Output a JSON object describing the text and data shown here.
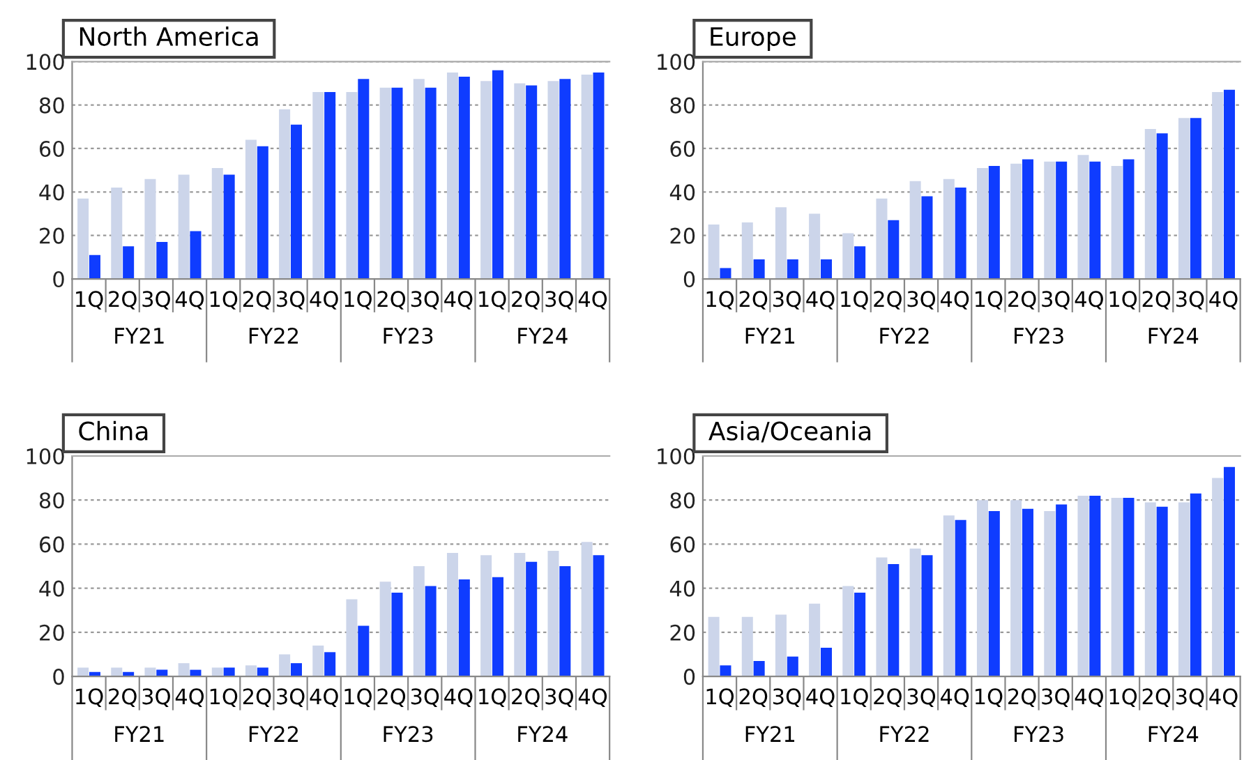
{
  "chart_data": [
    {
      "type": "bar",
      "title": "North America",
      "categories": [
        "1Q",
        "2Q",
        "3Q",
        "4Q",
        "1Q",
        "2Q",
        "3Q",
        "4Q",
        "1Q",
        "2Q",
        "3Q",
        "4Q",
        "1Q",
        "2Q",
        "3Q",
        "4Q"
      ],
      "annotations": [
        "FY21",
        "FY22",
        "FY23",
        "FY24"
      ],
      "ylim": [
        0,
        100
      ],
      "yticks": [
        0,
        20,
        40,
        60,
        80,
        100
      ],
      "grid": "y",
      "legend": false,
      "series": [
        {
          "color": "#ccd5ea",
          "values": [
            37,
            42,
            46,
            48,
            51,
            64,
            78,
            86,
            86,
            88,
            92,
            95,
            91,
            90,
            91,
            94
          ]
        },
        {
          "color": "#0f3cff",
          "values": [
            11,
            15,
            17,
            22,
            48,
            61,
            71,
            86,
            92,
            88,
            88,
            93,
            96,
            89,
            92,
            95
          ]
        }
      ]
    },
    {
      "type": "bar",
      "title": "Europe",
      "categories": [
        "1Q",
        "2Q",
        "3Q",
        "4Q",
        "1Q",
        "2Q",
        "3Q",
        "4Q",
        "1Q",
        "2Q",
        "3Q",
        "4Q",
        "1Q",
        "2Q",
        "3Q",
        "4Q"
      ],
      "annotations": [
        "FY21",
        "FY22",
        "FY23",
        "FY24"
      ],
      "ylim": [
        0,
        100
      ],
      "yticks": [
        0,
        20,
        40,
        60,
        80,
        100
      ],
      "grid": "y",
      "legend": false,
      "series": [
        {
          "color": "#ccd5ea",
          "values": [
            25,
            26,
            33,
            30,
            21,
            37,
            45,
            46,
            51,
            53,
            54,
            57,
            52,
            69,
            74,
            86
          ]
        },
        {
          "color": "#0f3cff",
          "values": [
            5,
            9,
            9,
            9,
            15,
            27,
            38,
            42,
            52,
            55,
            54,
            54,
            55,
            67,
            74,
            87
          ]
        }
      ]
    },
    {
      "type": "bar",
      "title": "China",
      "categories": [
        "1Q",
        "2Q",
        "3Q",
        "4Q",
        "1Q",
        "2Q",
        "3Q",
        "4Q",
        "1Q",
        "2Q",
        "3Q",
        "4Q",
        "1Q",
        "2Q",
        "3Q",
        "4Q"
      ],
      "annotations": [
        "FY21",
        "FY22",
        "FY23",
        "FY24"
      ],
      "ylim": [
        0,
        100
      ],
      "yticks": [
        0,
        20,
        40,
        60,
        80,
        100
      ],
      "grid": "y",
      "legend": false,
      "series": [
        {
          "color": "#ccd5ea",
          "values": [
            4,
            4,
            4,
            6,
            4,
            5,
            10,
            14,
            35,
            43,
            50,
            56,
            55,
            56,
            57,
            61
          ]
        },
        {
          "color": "#0f3cff",
          "values": [
            2,
            2,
            3,
            3,
            4,
            4,
            6,
            11,
            23,
            38,
            41,
            44,
            45,
            52,
            50,
            55
          ]
        }
      ]
    },
    {
      "type": "bar",
      "title": "Asia/Oceania",
      "categories": [
        "1Q",
        "2Q",
        "3Q",
        "4Q",
        "1Q",
        "2Q",
        "3Q",
        "4Q",
        "1Q",
        "2Q",
        "3Q",
        "4Q",
        "1Q",
        "2Q",
        "3Q",
        "4Q"
      ],
      "annotations": [
        "FY21",
        "FY22",
        "FY23",
        "FY24"
      ],
      "ylim": [
        0,
        100
      ],
      "yticks": [
        0,
        20,
        40,
        60,
        80,
        100
      ],
      "grid": "y",
      "legend": false,
      "series": [
        {
          "color": "#ccd5ea",
          "values": [
            27,
            27,
            28,
            33,
            41,
            54,
            58,
            73,
            80,
            80,
            75,
            82,
            81,
            79,
            79,
            90
          ]
        },
        {
          "color": "#0f3cff",
          "values": [
            5,
            7,
            9,
            13,
            38,
            51,
            55,
            71,
            75,
            76,
            78,
            82,
            81,
            77,
            83,
            95
          ]
        }
      ]
    }
  ]
}
